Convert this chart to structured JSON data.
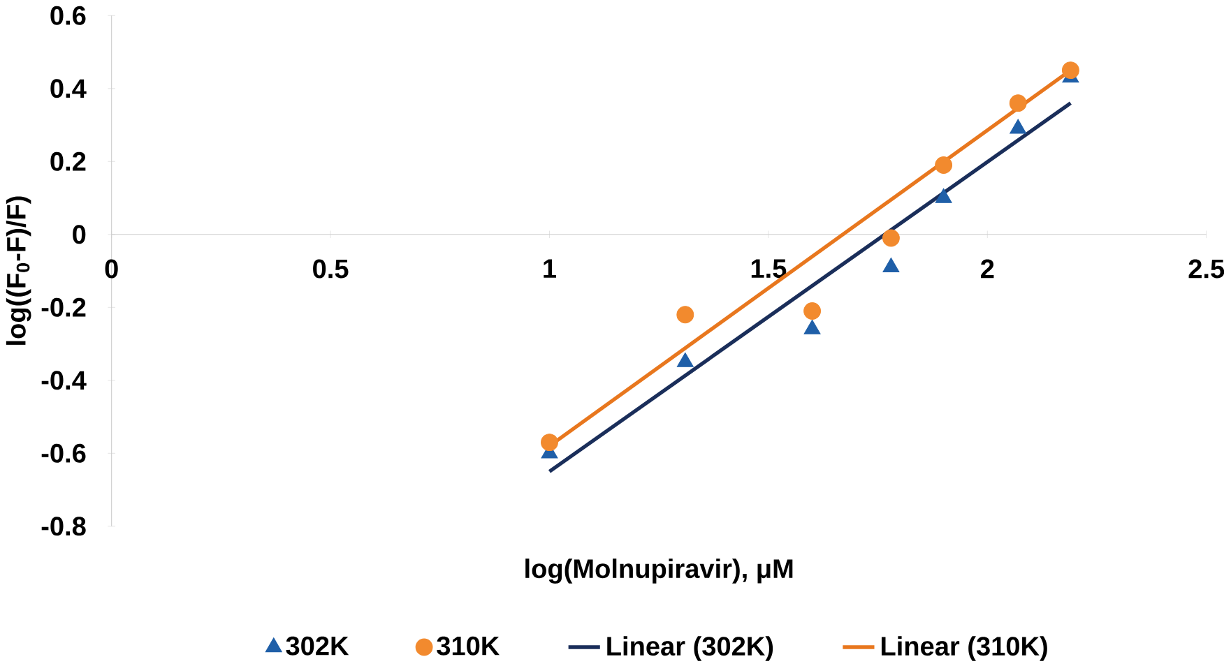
{
  "chart_data": {
    "type": "scatter",
    "xlabel": "log(Molnupiravir), μM",
    "ylabel": "log((F$_{0}$-F)/F)",
    "xlim": [
      0,
      2.5
    ],
    "ylim": [
      -0.8,
      0.6
    ],
    "xticks": [
      0,
      0.5,
      1,
      1.5,
      2,
      2.5
    ],
    "yticks": [
      -0.8,
      -0.6,
      -0.4,
      -0.2,
      0,
      0.2,
      0.4,
      0.6
    ],
    "grid": false,
    "legend": "bottom",
    "series": [
      {
        "name": "302K",
        "marker": "triangle",
        "color": "#1f5fa8",
        "x": [
          1.0,
          1.31,
          1.6,
          1.78,
          1.9,
          2.07,
          2.19
        ],
        "values": [
          -0.6,
          -0.35,
          -0.26,
          -0.09,
          0.1,
          0.29,
          0.43
        ]
      },
      {
        "name": "310K",
        "marker": "circle",
        "color": "#f28a2e",
        "x": [
          1.0,
          1.31,
          1.6,
          1.78,
          1.9,
          2.07,
          2.19
        ],
        "values": [
          -0.57,
          -0.22,
          -0.21,
          -0.01,
          0.19,
          0.36,
          0.45
        ]
      },
      {
        "name": "Linear (302K)",
        "type": "line",
        "marker": "none",
        "color": "#1a2e5a",
        "x": [
          1.0,
          2.19
        ],
        "values": [
          -0.65,
          0.36
        ]
      },
      {
        "name": "Linear (310K)",
        "type": "line",
        "marker": "none",
        "color": "#e8771e",
        "x": [
          1.0,
          2.19
        ],
        "values": [
          -0.58,
          0.45
        ]
      }
    ]
  }
}
